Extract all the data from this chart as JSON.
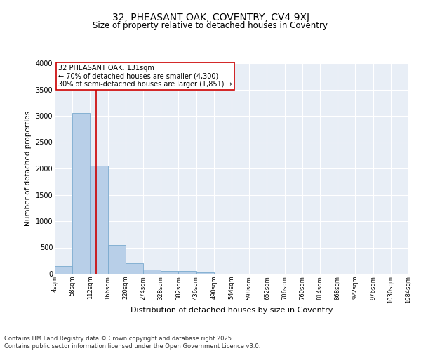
{
  "title": "32, PHEASANT OAK, COVENTRY, CV4 9XJ",
  "subtitle": "Size of property relative to detached houses in Coventry",
  "xlabel": "Distribution of detached houses by size in Coventry",
  "ylabel": "Number of detached properties",
  "bin_labels": [
    "4sqm",
    "58sqm",
    "112sqm",
    "166sqm",
    "220sqm",
    "274sqm",
    "328sqm",
    "382sqm",
    "436sqm",
    "490sqm",
    "544sqm",
    "598sqm",
    "652sqm",
    "706sqm",
    "760sqm",
    "814sqm",
    "868sqm",
    "922sqm",
    "976sqm",
    "1030sqm",
    "1084sqm"
  ],
  "bin_edges": [
    4,
    58,
    112,
    166,
    220,
    274,
    328,
    382,
    436,
    490,
    544,
    598,
    652,
    706,
    760,
    814,
    868,
    922,
    976,
    1030,
    1084
  ],
  "bar_heights": [
    150,
    3050,
    2050,
    550,
    200,
    75,
    60,
    50,
    30,
    0,
    0,
    0,
    0,
    0,
    0,
    0,
    0,
    0,
    0,
    0
  ],
  "bar_color": "#b8cfe8",
  "bar_edge_color": "#7aaace",
  "background_color": "#e8eef6",
  "grid_color": "#ffffff",
  "property_size": 131,
  "vline_color": "#cc0000",
  "annotation_text": "32 PHEASANT OAK: 131sqm\n← 70% of detached houses are smaller (4,300)\n30% of semi-detached houses are larger (1,851) →",
  "annotation_box_color": "#cc0000",
  "ylim": [
    0,
    4000
  ],
  "yticks": [
    0,
    500,
    1000,
    1500,
    2000,
    2500,
    3000,
    3500,
    4000
  ],
  "footer_line1": "Contains HM Land Registry data © Crown copyright and database right 2025.",
  "footer_line2": "Contains public sector information licensed under the Open Government Licence v3.0."
}
